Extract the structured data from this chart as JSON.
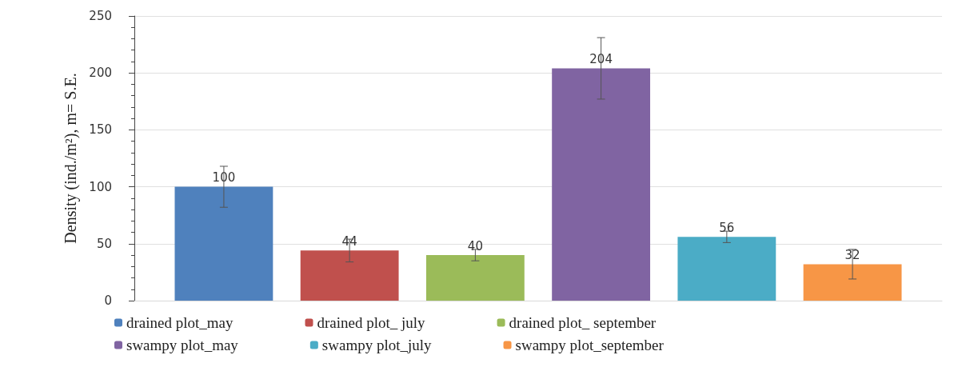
{
  "chart_data": {
    "type": "bar",
    "ylabel": "Density (ind./m²), m= S.E.",
    "categories": [
      null
    ],
    "series": [
      {
        "name": "drained plot_may",
        "color": "#4f81bd",
        "values": [
          100
        ],
        "errors": [
          18
        ]
      },
      {
        "name": "drained plot_ july",
        "color": "#c0504d",
        "values": [
          44
        ],
        "errors": [
          10
        ]
      },
      {
        "name": "drained plot_ september",
        "color": "#9bbb59",
        "values": [
          40
        ],
        "errors": [
          5
        ]
      },
      {
        "name": "swampy plot_may",
        "color": "#8064a2",
        "values": [
          204
        ],
        "errors": [
          27
        ]
      },
      {
        "name": "swampy plot_july",
        "color": "#4bacc6",
        "values": [
          56
        ],
        "errors": [
          5
        ]
      },
      {
        "name": "swampy plot_september",
        "color": "#f79646",
        "values": [
          32
        ],
        "errors": [
          13
        ]
      }
    ],
    "ylim": [
      0,
      250
    ],
    "yticks": [
      0,
      50,
      100,
      150,
      200,
      250
    ],
    "grid": "y",
    "legend": "bottom",
    "data_labels": true
  }
}
